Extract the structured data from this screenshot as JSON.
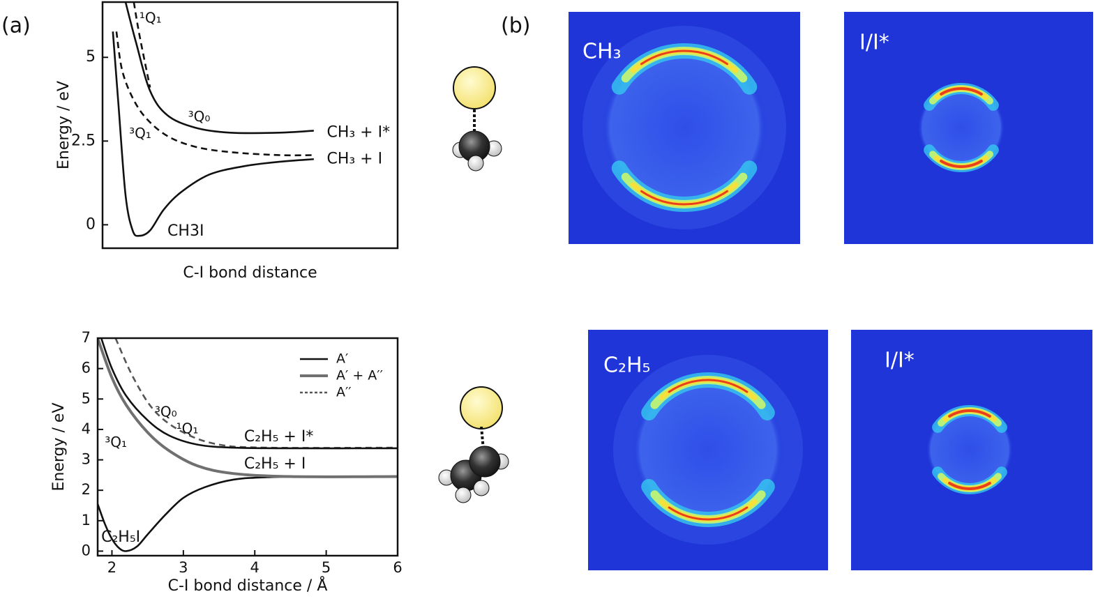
{
  "panel_labels": [
    "(a)",
    "(b)"
  ],
  "chart_data": [
    {
      "type": "line",
      "ylabel": "Energy / eV",
      "xlabel": "C-I bond distance",
      "xlim": [
        0,
        10
      ],
      "ylim": [
        -0.7,
        6.65
      ],
      "yticks": [
        0,
        2.5,
        5
      ],
      "series": [
        {
          "color": "#111111",
          "line_style": "solid",
          "x": [
            0.35,
            0.54,
            0.78,
            1.02,
            1.25,
            1.61,
            2.08,
            2.67,
            3.62,
            4.8,
            5.98,
            7.16
          ],
          "values": [
            5.77,
            3.58,
            0.88,
            -0.17,
            -0.33,
            -0.17,
            0.46,
            0.98,
            1.5,
            1.75,
            1.88,
            1.96
          ]
        },
        {
          "color": "#111111",
          "line_style": "solid",
          "x": [
            0.78,
            1.13,
            1.61,
            2.2,
            3.14,
            4.33,
            5.98,
            7.16
          ],
          "values": [
            6.65,
            5.46,
            4.0,
            3.27,
            2.9,
            2.75,
            2.75,
            2.81
          ]
        },
        {
          "color": "#111111",
          "line_style": "dashed",
          "x": [
            1.06,
            1.25,
            1.61
          ],
          "values": [
            6.65,
            5.67,
            4.1
          ]
        },
        {
          "color": "#111111",
          "line_style": "dashed",
          "x": [
            0.47,
            0.66,
            1.02,
            1.49,
            2.2,
            3.14,
            4.33,
            5.98,
            7.16
          ],
          "values": [
            5.77,
            4.63,
            3.79,
            3.17,
            2.65,
            2.33,
            2.17,
            2.08,
            2.08
          ]
        }
      ],
      "annotations": [
        "¹Q₁",
        "³Q₀",
        "³Q₁",
        "CH₃ + I*",
        "CH₃ + I",
        "CH3I"
      ]
    },
    {
      "type": "line",
      "ylabel": "Energy / eV",
      "xlabel": "C-I bond distance / Å",
      "xlim": [
        1.8,
        6
      ],
      "ylim": [
        -0.15,
        7
      ],
      "xticks": [
        2,
        3,
        4,
        5,
        6
      ],
      "yticks": [
        0,
        1,
        2,
        3,
        4,
        5,
        6,
        7
      ],
      "legend": "upper right",
      "series": [
        {
          "name": "A′",
          "color": "#111111",
          "line_style": "solid",
          "x": [
            1.8,
            1.9,
            2.0,
            2.1,
            2.2,
            2.35,
            2.5,
            2.75,
            3.0,
            3.3,
            3.7,
            4.2,
            5,
            6
          ],
          "values": [
            1.55,
            0.9,
            0.4,
            0.1,
            0.0,
            0.15,
            0.55,
            1.2,
            1.75,
            2.1,
            2.35,
            2.43,
            2.45,
            2.45
          ]
        },
        {
          "name": "A′ + A′′",
          "color": "#707070",
          "line_style": "thick",
          "x": [
            1.8,
            2.0,
            2.2,
            2.5,
            2.8,
            3.2,
            3.7,
            4.5,
            6
          ],
          "values": [
            7,
            5.7,
            4.8,
            3.9,
            3.3,
            2.8,
            2.55,
            2.45,
            2.45
          ]
        },
        {
          "name": "A′′",
          "color": "#555555",
          "line_style": "dashed",
          "x": [
            2.05,
            2.3,
            2.6,
            3.0,
            3.5,
            4.2,
            6
          ],
          "values": [
            7,
            5.7,
            4.6,
            3.9,
            3.5,
            3.4,
            3.4
          ]
        },
        {
          "color": "#111111",
          "line_style": "solid",
          "x": [
            1.85,
            2.0,
            2.2,
            2.5,
            2.8,
            3.2,
            3.7,
            4.5,
            6
          ],
          "values": [
            7,
            6.0,
            5.1,
            4.3,
            3.8,
            3.5,
            3.4,
            3.38,
            3.38
          ]
        }
      ],
      "annotations": [
        "³Q₀",
        "¹Q₁",
        "³Q₁",
        "C₂H₅ + I*",
        "C₂H₅ + I",
        "C₂H₅I"
      ]
    }
  ],
  "images": [
    {
      "label": "CH₃"
    },
    {
      "label": "I/I*"
    },
    {
      "label": "C₂H₅"
    },
    {
      "label": "I/I*"
    }
  ]
}
